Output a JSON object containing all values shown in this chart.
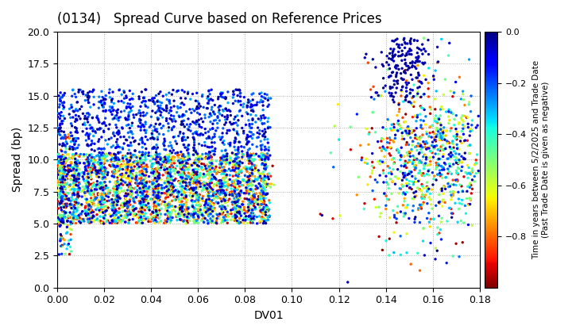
{
  "title": "(0134)   Spread Curve based on Reference Prices",
  "xlabel": "DV01",
  "ylabel": "Spread (bp)",
  "xlim": [
    0.0,
    0.18
  ],
  "ylim": [
    0.0,
    20.0
  ],
  "xticks": [
    0.0,
    0.02,
    0.04,
    0.06,
    0.08,
    0.1,
    0.12,
    0.14,
    0.16,
    0.18
  ],
  "yticks": [
    0.0,
    2.5,
    5.0,
    7.5,
    10.0,
    12.5,
    15.0,
    17.5,
    20.0
  ],
  "cbar_label": "Time in years between 5/2/2025 and Trade Date\n(Past Trade Date is given as negative)",
  "cbar_ticks": [
    0.0,
    -0.2,
    -0.4,
    -0.6,
    -0.8
  ],
  "clim": [
    -1.0,
    0.0
  ],
  "background_color": "#ffffff",
  "grid_color": "#aaaaaa",
  "seed": 42,
  "marker_size": 6
}
